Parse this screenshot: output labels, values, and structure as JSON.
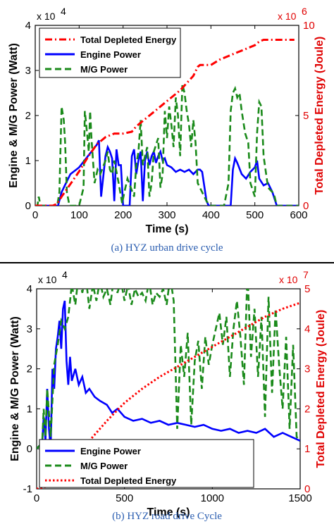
{
  "chart_data": [
    {
      "type": "line",
      "caption": "(a) HYZ urban drive cycle",
      "xlabel": "Time (s)",
      "ylabel": "Engine & M/G Power (Watt)",
      "ylabel_right": "Total Depleted Energy (Joule)",
      "y_exponent": "x 10",
      "y_exponent_power": "4",
      "y_right_exponent": "x 10",
      "y_right_exponent_power": "6",
      "xlim": [
        0,
        600
      ],
      "ylim": [
        0,
        4
      ],
      "ylim_right": [
        0,
        10
      ],
      "x_ticks": [
        "0",
        "100",
        "200",
        "300",
        "400",
        "500",
        "600"
      ],
      "y_ticks": [
        "0",
        "1",
        "2",
        "3",
        "4"
      ],
      "y_right_ticks": [
        "0",
        "5",
        "10"
      ],
      "legend": [
        "Total Depleted Energy",
        "Engine Power",
        "M/G Power"
      ],
      "series": [
        {
          "name": "Engine Power",
          "axis": "left",
          "color": "#0000ff",
          "style": "solid",
          "x": [
            0,
            40,
            52,
            60,
            70,
            80,
            100,
            120,
            140,
            145,
            150,
            160,
            165,
            170,
            175,
            180,
            185,
            190,
            195,
            200,
            215,
            220,
            225,
            230,
            235,
            240,
            245,
            250,
            255,
            260,
            265,
            270,
            275,
            280,
            285,
            290,
            295,
            300,
            310,
            320,
            330,
            340,
            350,
            360,
            370,
            375,
            380,
            390,
            395,
            400,
            430,
            445,
            450,
            455,
            460,
            470,
            480,
            490,
            500,
            505,
            510,
            520,
            530,
            540,
            550,
            600
          ],
          "y": [
            0,
            0,
            0,
            0.3,
            0.5,
            0.7,
            0.85,
            1.1,
            1.35,
            1.45,
            0.2,
            1.1,
            1.3,
            1.2,
            1.05,
            0.1,
            1.25,
            0.9,
            0.9,
            0,
            0,
            1.1,
            1.25,
            0.7,
            1.0,
            1.2,
            0.1,
            1.0,
            1.2,
            0.9,
            1.1,
            1.2,
            0.95,
            1.1,
            1.2,
            1.0,
            1.05,
            0.9,
            0.85,
            0.75,
            0.8,
            0.75,
            0.8,
            0.7,
            0.8,
            0.8,
            0.75,
            0.1,
            0,
            0,
            0,
            0,
            0.8,
            1.05,
            0.95,
            0.7,
            0.6,
            0.75,
            0.85,
            1.0,
            0.6,
            0.45,
            0.5,
            0.3,
            0,
            0
          ]
        },
        {
          "name": "M/G Power",
          "axis": "left",
          "color": "#1a8a1a",
          "style": "dashed",
          "x": [
            0,
            5,
            8,
            12,
            40,
            50,
            55,
            60,
            65,
            68,
            72,
            78,
            85,
            100,
            110,
            113,
            118,
            122,
            125,
            128,
            135,
            142,
            148,
            160,
            165,
            170,
            175,
            180,
            190,
            198,
            203,
            210,
            225,
            230,
            235,
            240,
            245,
            255,
            260,
            265,
            270,
            280,
            285,
            290,
            295,
            300,
            305,
            310,
            315,
            320,
            325,
            330,
            335,
            340,
            345,
            350,
            355,
            360,
            365,
            370,
            380,
            390,
            398,
            410,
            430,
            440,
            445,
            450,
            455,
            460,
            465,
            470,
            478,
            485,
            490,
            500,
            505,
            510,
            515,
            520,
            530,
            540,
            545,
            550,
            600
          ],
          "y": [
            0,
            0,
            0.2,
            0,
            0,
            0,
            0.3,
            2.2,
            1.9,
            1.4,
            0.3,
            0,
            0,
            0,
            0.4,
            2.1,
            1.6,
            1.2,
            2.1,
            1.5,
            0.5,
            0.8,
            0.7,
            1.0,
            1.2,
            0.8,
            0.7,
            1.0,
            0.5,
            0.05,
            0.3,
            0.6,
            0.2,
            0.9,
            1.2,
            1.9,
            0.9,
            1.3,
            0.2,
            0.5,
            1.2,
            1.5,
            0.4,
            0.7,
            2.1,
            1.5,
            2.2,
            1.8,
            1.3,
            2.4,
            2.0,
            1.1,
            2.7,
            2.5,
            2.1,
            1.8,
            1.3,
            1.9,
            1.4,
            0.5,
            0.3,
            0.1,
            0,
            0,
            0,
            0.5,
            2.1,
            2.5,
            2.6,
            2.4,
            2.5,
            2.1,
            1.6,
            1.4,
            0.5,
            0.2,
            1.6,
            2.3,
            2.2,
            1.1,
            0.4,
            0.3,
            0.2,
            0,
            0
          ]
        },
        {
          "name": "Total Depleted Energy",
          "axis": "right",
          "color": "#ff0000",
          "style": "dashdot",
          "x": [
            0,
            40,
            50,
            60,
            80,
            100,
            120,
            140,
            160,
            180,
            200,
            220,
            230,
            240,
            260,
            280,
            300,
            330,
            360,
            370,
            375,
            380,
            390,
            400,
            420,
            440,
            460,
            480,
            500,
            510,
            520,
            530,
            540,
            560,
            580,
            590
          ],
          "y": [
            0,
            0,
            0.1,
            0.5,
            1.2,
            1.9,
            2.7,
            3.4,
            3.8,
            4.0,
            4.0,
            4.1,
            4.4,
            4.6,
            5.0,
            5.4,
            5.8,
            6.4,
            7.2,
            7.7,
            7.8,
            7.8,
            7.8,
            7.8,
            8.1,
            8.3,
            8.5,
            8.7,
            8.9,
            9.1,
            9.2,
            9.2,
            9.2,
            9.2,
            9.2,
            9.2
          ]
        }
      ]
    },
    {
      "type": "line",
      "caption": "(b) HYZ road drive Cycle",
      "xlabel": "Time (s)",
      "ylabel": "Engine & M/G Power (Watt)",
      "ylabel_right": "Total Depleted Energy (Joule)",
      "y_exponent": "x 10",
      "y_exponent_power": "4",
      "y_right_exponent": "x 10",
      "y_right_exponent_power": "7",
      "xlim": [
        0,
        1500
      ],
      "ylim": [
        -1,
        4
      ],
      "ylim_right": [
        0,
        5
      ],
      "x_ticks": [
        "0",
        "500",
        "1000",
        "1500"
      ],
      "y_ticks": [
        "-1",
        "0",
        "1",
        "2",
        "3",
        "4"
      ],
      "y_right_ticks": [
        "0",
        "1",
        "2",
        "3",
        "4",
        "5"
      ],
      "legend": [
        "Engine Power",
        "M/G Power",
        "Total Depleted Energy"
      ],
      "series": [
        {
          "name": "Engine Power",
          "axis": "left",
          "color": "#0000ff",
          "style": "solid",
          "x": [
            0,
            20,
            30,
            40,
            50,
            60,
            70,
            80,
            90,
            100,
            110,
            120,
            130,
            140,
            150,
            160,
            170,
            180,
            190,
            200,
            220,
            240,
            260,
            280,
            300,
            330,
            360,
            400,
            430,
            460,
            500,
            550,
            600,
            650,
            700,
            750,
            800,
            850,
            900,
            950,
            1000,
            1050,
            1100,
            1150,
            1200,
            1250,
            1300,
            1350,
            1400,
            1450,
            1500
          ],
          "y": [
            0,
            0.1,
            0,
            0.8,
            0.2,
            1.5,
            0.5,
            0,
            2.0,
            1.5,
            2.5,
            2.8,
            3.2,
            2.5,
            3.5,
            3.7,
            2.2,
            1.6,
            2.3,
            1.7,
            2.0,
            1.6,
            1.8,
            1.4,
            1.5,
            1.3,
            1.2,
            1.1,
            0.9,
            1.0,
            0.8,
            0.7,
            0.75,
            0.65,
            0.7,
            0.6,
            0.65,
            0.6,
            0.55,
            0.6,
            0.5,
            0.45,
            0.5,
            0.4,
            0.45,
            0.4,
            0.5,
            0.3,
            0.4,
            0.3,
            0.2
          ]
        },
        {
          "name": "M/G Power",
          "axis": "left",
          "color": "#1a8a1a",
          "style": "dashed",
          "x": [
            0,
            20,
            30,
            40,
            50,
            60,
            80,
            100,
            120,
            140,
            160,
            180,
            200,
            220,
            240,
            260,
            280,
            300,
            320,
            340,
            360,
            380,
            400,
            420,
            440,
            460,
            480,
            500,
            520,
            540,
            560,
            580,
            600,
            620,
            640,
            660,
            680,
            700,
            720,
            740,
            760,
            780,
            800,
            820,
            840,
            860,
            880,
            900,
            920,
            940,
            960,
            980,
            1000,
            1020,
            1040,
            1060,
            1080,
            1100,
            1120,
            1140,
            1160,
            1180,
            1200,
            1220,
            1240,
            1260,
            1280,
            1300,
            1320,
            1340,
            1360,
            1380,
            1400,
            1420,
            1440,
            1460,
            1480,
            1500
          ],
          "y": [
            0,
            0.1,
            0,
            1.0,
            0.3,
            1.5,
            0.3,
            2.1,
            2.6,
            3.2,
            3.0,
            3.3,
            4.1,
            3.6,
            4.4,
            3.9,
            4.3,
            3.5,
            4.1,
            3.7,
            4.2,
            3.8,
            4.0,
            3.6,
            4.3,
            3.9,
            4.2,
            3.7,
            4.1,
            3.6,
            4.0,
            3.8,
            3.9,
            3.7,
            4.2,
            3.6,
            3.9,
            3.8,
            4.0,
            3.6,
            4.3,
            3.7,
            0.5,
            2.6,
            1.8,
            2.9,
            0.6,
            2.2,
            2.7,
            1.5,
            2.8,
            2.1,
            2.6,
            3.0,
            3.4,
            2.6,
            3.3,
            1.8,
            3.0,
            3.7,
            2.8,
            1.6,
            4.4,
            2.3,
            3.5,
            1.8,
            3.3,
            0.8,
            3.8,
            1.4,
            3.5,
            2.1,
            1.0,
            2.8,
            0.5,
            2.6,
            0.3,
            0.2
          ]
        },
        {
          "name": "Total Depleted Energy",
          "axis": "right",
          "color": "#ff0000",
          "style": "dotted",
          "x": [
            0,
            50,
            100,
            150,
            200,
            250,
            300,
            400,
            500,
            600,
            700,
            800,
            900,
            1000,
            1100,
            1200,
            1300,
            1400,
            1500
          ],
          "y": [
            0,
            0.05,
            0.15,
            0.3,
            0.6,
            0.9,
            1.2,
            1.7,
            2.15,
            2.5,
            2.8,
            3.05,
            3.3,
            3.55,
            3.8,
            4.05,
            4.3,
            4.5,
            4.65
          ]
        }
      ]
    }
  ]
}
